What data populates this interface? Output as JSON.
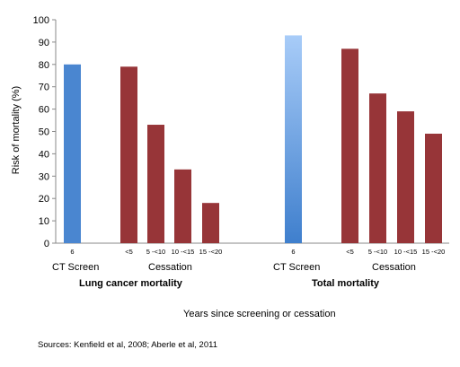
{
  "chart_data": {
    "type": "bar",
    "ylabel": "Risk of mortality (%)",
    "xlabel": "Years since screening or cessation",
    "ylim": [
      0,
      100
    ],
    "yticks": [
      0,
      10,
      20,
      30,
      40,
      50,
      60,
      70,
      80,
      90,
      100
    ],
    "grid": false,
    "groups": [
      {
        "title": "Lung cancer mortality",
        "subgroups": [
          {
            "label": "CT Screen",
            "bars": [
              {
                "tick": "6",
                "value": 80
              }
            ]
          },
          {
            "label": "Cessation",
            "bars": [
              {
                "tick": "<5",
                "value": 79
              },
              {
                "tick": "5 -<10",
                "value": 53
              },
              {
                "tick": "10 -<15",
                "value": 33
              },
              {
                "tick": "15 -<20",
                "value": 18
              }
            ]
          }
        ]
      },
      {
        "title": "Total mortality",
        "subgroups": [
          {
            "label": "CT Screen",
            "bars": [
              {
                "tick": "6",
                "value": 93
              }
            ]
          },
          {
            "label": "Cessation",
            "bars": [
              {
                "tick": "<5",
                "value": 87
              },
              {
                "tick": "5 -<10",
                "value": 67
              },
              {
                "tick": "10 -<15",
                "value": 59
              },
              {
                "tick": "15 -<20",
                "value": 49
              }
            ]
          }
        ]
      }
    ],
    "colors": {
      "ct_lung": "#4a86d0",
      "ct_total_top": "#a8ccf8",
      "ct_total_bottom": "#3f7fcd",
      "cessation": "#973538",
      "axis": "#888888"
    }
  },
  "source": "Sources: Kenfield et al, 2008; Aberle et al, 2011"
}
